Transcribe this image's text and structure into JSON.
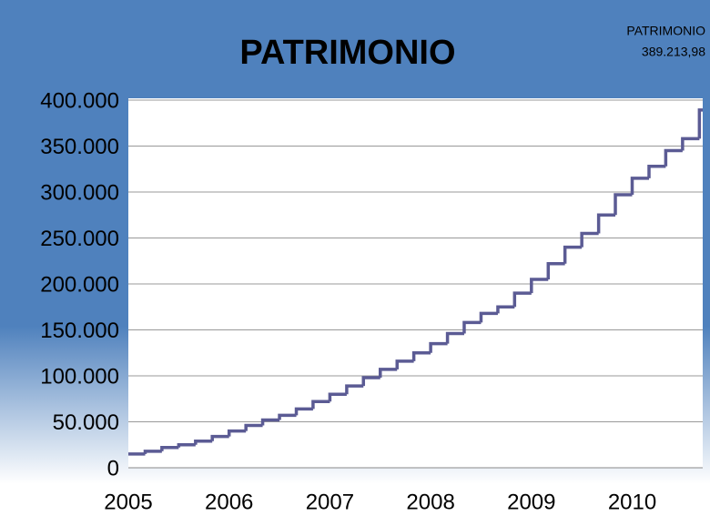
{
  "chart_data": {
    "type": "step",
    "title": "PATRIMONIO",
    "annotations": [
      "PATRIMONIO",
      "389.213,98"
    ],
    "x": [
      2005.0,
      2005.167,
      2005.333,
      2005.5,
      2005.667,
      2005.833,
      2006.0,
      2006.167,
      2006.333,
      2006.5,
      2006.667,
      2006.833,
      2007.0,
      2007.167,
      2007.333,
      2007.5,
      2007.667,
      2007.833,
      2008.0,
      2008.167,
      2008.333,
      2008.5,
      2008.667,
      2008.833,
      2009.0,
      2009.167,
      2009.333,
      2009.5,
      2009.667,
      2009.833,
      2010.0,
      2010.167,
      2010.333,
      2010.5,
      2010.667
    ],
    "series": [
      {
        "name": "PATRIMONIO",
        "color": "#5b5b94",
        "values": [
          15000,
          18000,
          22000,
          25000,
          29000,
          34000,
          40000,
          46000,
          52000,
          57000,
          64000,
          72000,
          80000,
          89000,
          98000,
          107000,
          116000,
          125000,
          135000,
          146000,
          158000,
          168000,
          175000,
          190000,
          205000,
          222000,
          240000,
          255000,
          275000,
          297000,
          315000,
          328000,
          345000,
          358000,
          389213.98
        ]
      }
    ],
    "xlim": [
      2005,
      2010.7
    ],
    "xticks": [
      2005,
      2006,
      2007,
      2008,
      2009,
      2010
    ],
    "ylim": [
      0,
      400000
    ],
    "yticks": [
      0,
      {
        "value": 50000,
        "label": "50.000"
      },
      {
        "value": 100000,
        "label": "100.000"
      },
      {
        "value": 150000,
        "label": "150.000"
      },
      {
        "value": 200000,
        "label": "200.000"
      },
      {
        "value": 250000,
        "label": "250.000"
      },
      {
        "value": 300000,
        "label": "300.000"
      },
      {
        "value": 350000,
        "label": "350.000"
      },
      {
        "value": 400000,
        "label": "400.000"
      }
    ],
    "grid": true
  }
}
